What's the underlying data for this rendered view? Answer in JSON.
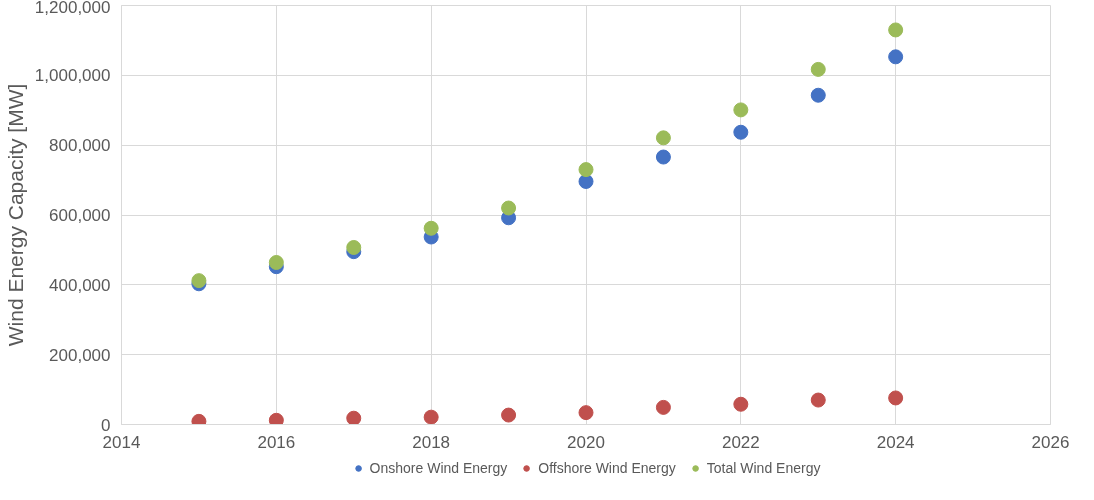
{
  "chart_data": {
    "type": "scatter",
    "ylabel": "Wind Energy Capacity [MW]",
    "x": [
      2015,
      2016,
      2017,
      2018,
      2019,
      2020,
      2021,
      2022,
      2023,
      2024
    ],
    "series": [
      {
        "name": "Onshore Wind Energy",
        "color": "#4472c4",
        "values": [
          403000,
          452000,
          495000,
          537000,
          592000,
          696000,
          766000,
          837000,
          943000,
          1053000
        ]
      },
      {
        "name": "Offshore Wind Energy",
        "color": "#c0504d",
        "values": [
          9000,
          12000,
          18000,
          21000,
          27000,
          34000,
          49000,
          58000,
          70000,
          76000
        ]
      },
      {
        "name": "Total Wind Energy",
        "color": "#9bbb59",
        "values": [
          412000,
          464000,
          507000,
          562000,
          620000,
          730000,
          821000,
          901000,
          1017000,
          1130000
        ]
      }
    ],
    "xlim": [
      2014,
      2026
    ],
    "xticks": [
      2014,
      2016,
      2018,
      2020,
      2022,
      2024,
      2026
    ],
    "ylim": [
      0,
      1200000
    ],
    "yticks": [
      {
        "value": 0,
        "label": "0"
      },
      {
        "value": 200000,
        "label": "200,000"
      },
      {
        "value": 400000,
        "label": "400,000"
      },
      {
        "value": 600000,
        "label": "600,000"
      },
      {
        "value": 800000,
        "label": "800,000"
      },
      {
        "value": 1000000,
        "label": "1,000,000"
      },
      {
        "value": 1200000,
        "label": "1,200,000"
      }
    ],
    "grid": true,
    "legend": "bottom",
    "marker": "circle"
  }
}
